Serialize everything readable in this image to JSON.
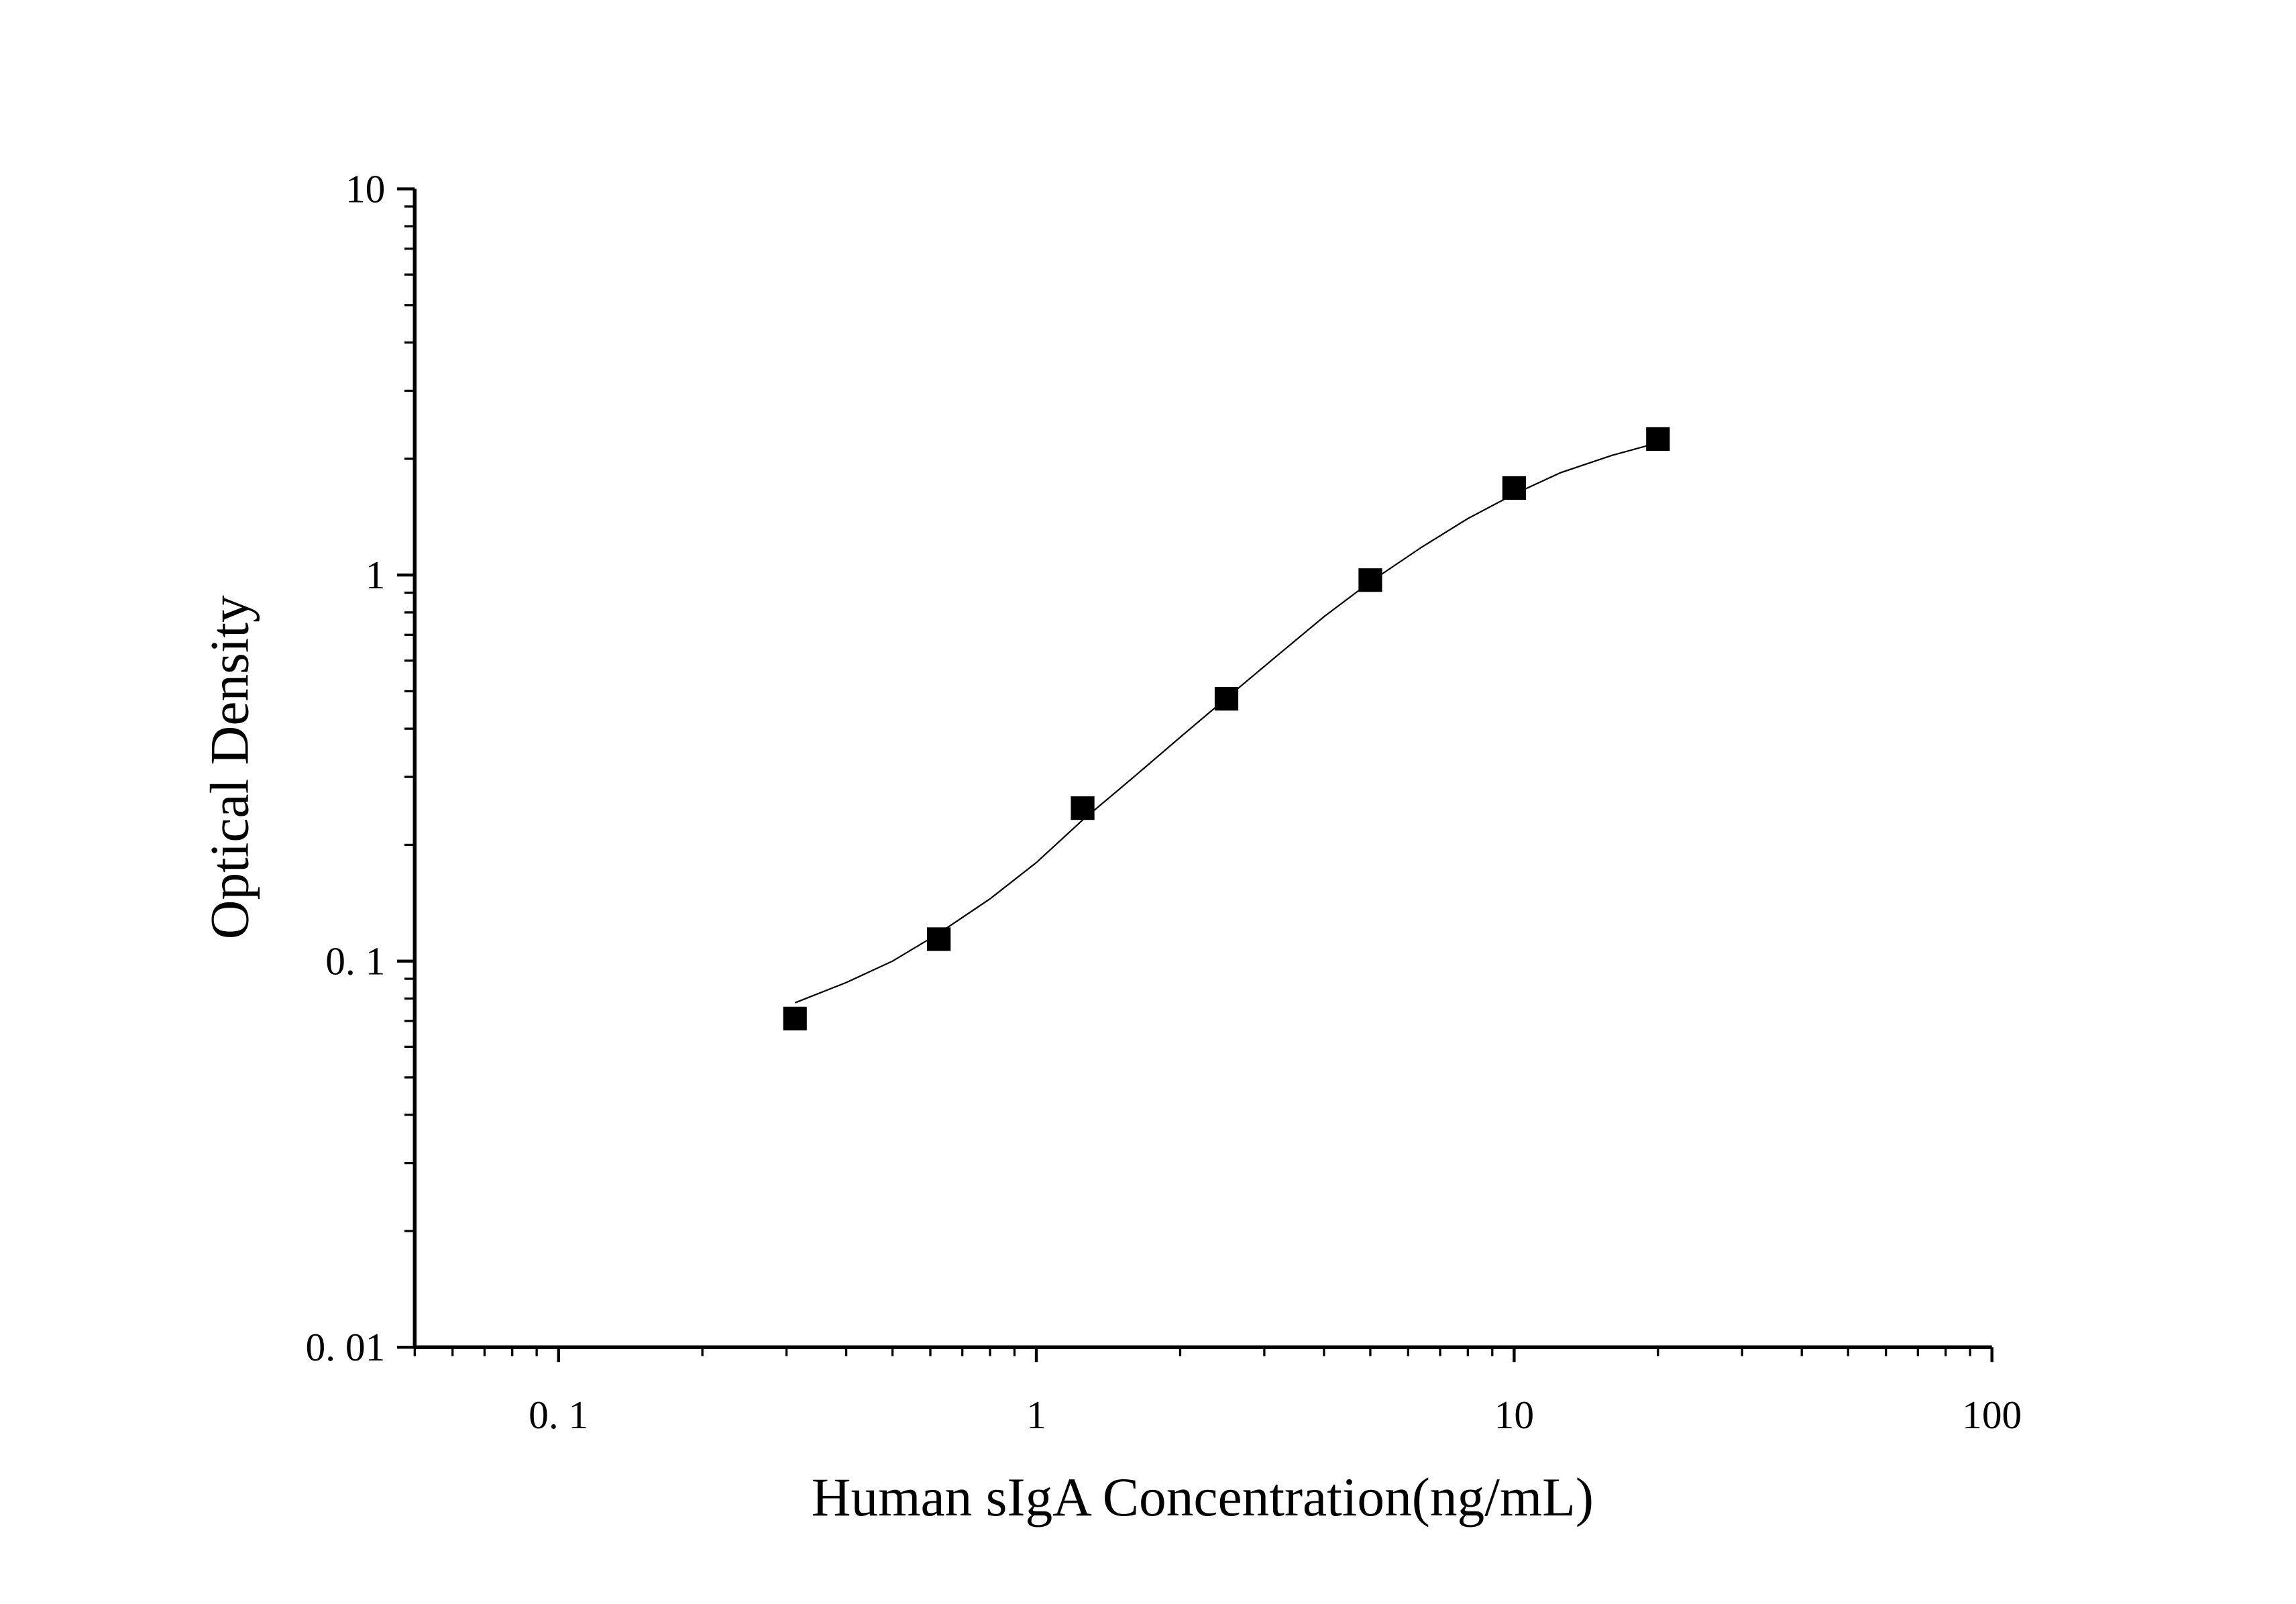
{
  "chart_data": {
    "type": "scatter",
    "x_label": "Human sIgA Concentration(ng/mL)",
    "y_label": "Optical Density",
    "x": [
      0.3125,
      0.625,
      1.25,
      2.5,
      5,
      10,
      20
    ],
    "values": [
      0.071,
      0.114,
      0.249,
      0.478,
      0.97,
      1.68,
      2.25
    ],
    "color": "#000000",
    "curve": {
      "x": [
        0.3125,
        0.4,
        0.5,
        0.625,
        0.8,
        1,
        1.25,
        1.6,
        2,
        2.5,
        3.2,
        4,
        5,
        6.4,
        8,
        10,
        12.5,
        16,
        20
      ],
      "y": [
        0.078,
        0.088,
        0.1,
        0.118,
        0.145,
        0.18,
        0.232,
        0.3,
        0.38,
        0.48,
        0.62,
        0.78,
        0.96,
        1.18,
        1.4,
        1.62,
        1.84,
        2.04,
        2.2
      ]
    },
    "xlog": true,
    "ylog": true,
    "xlim": [
      0.05,
      100
    ],
    "ylim": [
      0.01,
      10
    ],
    "xticks": [
      {
        "value": 0.1,
        "label": "0. 1"
      },
      1,
      10,
      100
    ],
    "yticks": [
      {
        "value": 0.01,
        "label": "0. 01"
      },
      {
        "value": 0.1,
        "label": "0. 1"
      },
      1,
      10
    ],
    "xminorticks": [
      0.05,
      0.06,
      0.07,
      0.08,
      0.09,
      0.2,
      0.3,
      0.4,
      0.5,
      0.6,
      0.7,
      0.8,
      0.9,
      2,
      3,
      4,
      5,
      6,
      7,
      8,
      9,
      20,
      30,
      40,
      50,
      60,
      70,
      80,
      90
    ],
    "yminorticks": [
      0.02,
      0.03,
      0.04,
      0.05,
      0.06,
      0.07,
      0.08,
      0.09,
      0.2,
      0.3,
      0.4,
      0.5,
      0.6,
      0.7,
      0.8,
      0.9,
      2,
      3,
      4,
      5,
      6,
      7,
      8,
      9
    ],
    "grid": false
  }
}
